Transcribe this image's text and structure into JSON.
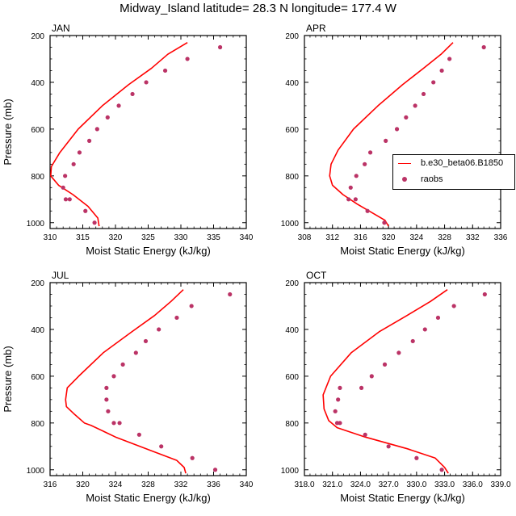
{
  "title": "Midway_Island  latitude= 28.3 N longitude= 177.4 W",
  "colors": {
    "model_line": "#ff0000",
    "obs_marker": "#bb3366",
    "axis": "#000000"
  },
  "legend": {
    "model_label": "b.e30_beta06.B1850",
    "obs_label": "raobs"
  },
  "chart_data": [
    {
      "type": "line",
      "panel_label": "JAN",
      "xlabel": "Moist Static Energy (kJ/kg)",
      "ylabel": "Pressure (mb)",
      "xlim": [
        310,
        340
      ],
      "ylim": [
        200,
        1025
      ],
      "y_inverted": true,
      "xticks": [
        310,
        315,
        320,
        325,
        330,
        335,
        340
      ],
      "xtick_labels": [
        "310",
        "315",
        "320",
        "325",
        "330",
        "335",
        "340"
      ],
      "yticks": [
        200,
        400,
        600,
        800,
        1000
      ],
      "ytick_labels": [
        "200",
        "400",
        "600",
        "800",
        "1000"
      ],
      "series": [
        {
          "name": "b.e30_beta06.B1850",
          "style": "line",
          "x": [
            331.0,
            328.0,
            325.5,
            322.0,
            318.0,
            314.3,
            311.5,
            310.2,
            310.1,
            311.3,
            313.5,
            315.8,
            317.3,
            317.5
          ],
          "y": [
            230,
            280,
            340,
            410,
            500,
            600,
            700,
            760,
            800,
            840,
            880,
            930,
            980,
            1015
          ]
        },
        {
          "name": "raobs",
          "style": "scatter",
          "x": [
            336.0,
            331.0,
            327.6,
            324.7,
            322.6,
            320.5,
            318.8,
            317.2,
            316.0,
            314.5,
            313.6,
            312.3,
            312.0,
            312.4,
            313.0,
            315.4,
            316.8
          ],
          "y": [
            250,
            300,
            350,
            400,
            450,
            500,
            550,
            600,
            650,
            700,
            750,
            800,
            850,
            900,
            900,
            950,
            1000
          ]
        }
      ]
    },
    {
      "type": "line",
      "panel_label": "APR",
      "xlabel": "Moist Static Energy (kJ/kg)",
      "ylabel": "",
      "xlim": [
        308,
        336
      ],
      "ylim": [
        200,
        1025
      ],
      "y_inverted": true,
      "xticks": [
        308,
        312,
        316,
        320,
        324,
        328,
        332,
        336
      ],
      "xtick_labels": [
        "308",
        "312",
        "316",
        "320",
        "324",
        "328",
        "332",
        "336"
      ],
      "yticks": [
        200,
        400,
        600,
        800,
        1000
      ],
      "ytick_labels": [
        "200",
        "400",
        "600",
        "800",
        "1000"
      ],
      "series": [
        {
          "name": "b.e30_beta06.B1850",
          "style": "line",
          "x": [
            329.2,
            327.5,
            325.0,
            322.0,
            318.5,
            315.0,
            312.8,
            311.8,
            311.6,
            312.0,
            313.5,
            315.5,
            317.8,
            319.5,
            320.0
          ],
          "y": [
            230,
            280,
            340,
            410,
            500,
            600,
            690,
            750,
            800,
            840,
            880,
            920,
            960,
            990,
            1015
          ]
        },
        {
          "name": "raobs",
          "style": "scatter",
          "x": [
            333.6,
            328.7,
            327.6,
            326.4,
            325.0,
            323.8,
            322.5,
            321.2,
            319.6,
            317.4,
            316.6,
            315.4,
            314.6,
            314.3,
            315.3,
            317.0,
            319.4
          ],
          "y": [
            250,
            300,
            350,
            400,
            450,
            500,
            550,
            600,
            650,
            700,
            750,
            800,
            850,
            900,
            900,
            950,
            1000
          ]
        }
      ]
    },
    {
      "type": "line",
      "panel_label": "JUL",
      "xlabel": "Moist Static Energy (kJ/kg)",
      "ylabel": "Pressure (mb)",
      "xlim": [
        316,
        340
      ],
      "ylim": [
        200,
        1025
      ],
      "y_inverted": true,
      "xticks": [
        316,
        320,
        324,
        328,
        332,
        336,
        340
      ],
      "xtick_labels": [
        "316",
        "320",
        "324",
        "328",
        "332",
        "336",
        "340"
      ],
      "yticks": [
        200,
        400,
        600,
        800,
        1000
      ],
      "ytick_labels": [
        "200",
        "400",
        "600",
        "800",
        "1000"
      ],
      "series": [
        {
          "name": "b.e30_beta06.B1850",
          "style": "line",
          "x": [
            332.3,
            330.8,
            328.8,
            326.0,
            322.5,
            319.5,
            318.1,
            317.9,
            318.0,
            318.9,
            320.2,
            321.0,
            324.0,
            328.5,
            331.5,
            332.4,
            332.6
          ],
          "y": [
            230,
            280,
            340,
            410,
            500,
            600,
            650,
            700,
            730,
            760,
            800,
            810,
            860,
            920,
            960,
            990,
            1015
          ]
        },
        {
          "name": "raobs",
          "style": "scatter",
          "x": [
            338.0,
            333.3,
            331.5,
            329.3,
            327.7,
            326.5,
            324.9,
            323.8,
            322.9,
            322.9,
            323.1,
            323.8,
            324.5,
            326.9,
            329.6,
            333.4,
            336.2
          ],
          "y": [
            250,
            300,
            350,
            400,
            450,
            500,
            550,
            600,
            650,
            700,
            750,
            800,
            800,
            850,
            900,
            950,
            1000
          ]
        }
      ]
    },
    {
      "type": "line",
      "panel_label": "OCT",
      "xlabel": "Moist Static Energy (kJ/kg)",
      "ylabel": "",
      "xlim": [
        318,
        339
      ],
      "ylim": [
        200,
        1025
      ],
      "y_inverted": true,
      "xticks": [
        318,
        321,
        324,
        327,
        330,
        333,
        336,
        339
      ],
      "xtick_labels": [
        "318.0",
        "321.0",
        "324.0",
        "327.0",
        "330.0",
        "333.0",
        "336.0",
        "339.0"
      ],
      "yticks": [
        200,
        400,
        600,
        800,
        1000
      ],
      "ytick_labels": [
        "200",
        "400",
        "600",
        "800",
        "1000"
      ],
      "series": [
        {
          "name": "b.e30_beta06.B1850",
          "style": "line",
          "x": [
            333.3,
            331.5,
            329.0,
            326.0,
            323.0,
            320.8,
            320.0,
            320.1,
            320.6,
            321.5,
            324.5,
            329.0,
            332.0,
            333.0,
            333.4
          ],
          "y": [
            230,
            280,
            340,
            410,
            500,
            600,
            680,
            740,
            790,
            820,
            860,
            910,
            950,
            990,
            1015
          ]
        },
        {
          "name": "raobs",
          "style": "scatter",
          "x": [
            337.3,
            334.0,
            332.3,
            330.9,
            329.6,
            328.1,
            326.6,
            325.2,
            324.1,
            321.8,
            321.6,
            321.3,
            321.5,
            321.8,
            324.5,
            327.0,
            330.0,
            332.7
          ],
          "y": [
            250,
            300,
            350,
            400,
            450,
            500,
            550,
            600,
            650,
            650,
            700,
            750,
            800,
            800,
            850,
            900,
            950,
            1000
          ]
        }
      ]
    }
  ]
}
